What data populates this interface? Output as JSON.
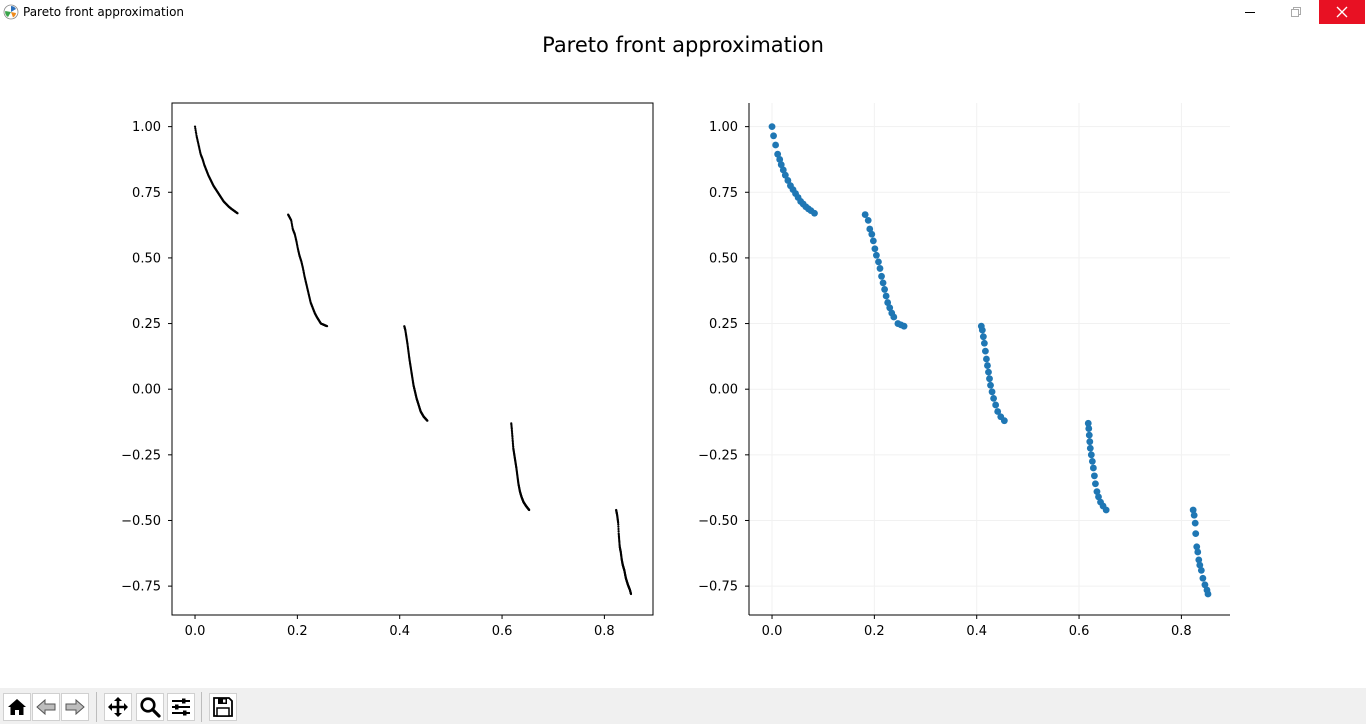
{
  "window": {
    "title": "Pareto front approximation",
    "controls": [
      "minimize",
      "maximize",
      "close"
    ]
  },
  "figure": {
    "suptitle": "Pareto front approximation"
  },
  "chart_data": [
    {
      "type": "scatter",
      "panel": "left",
      "style": "dense black small points, boxed axes",
      "marker_color": "#000000",
      "xlim": [
        -0.045,
        0.895
      ],
      "ylim": [
        -0.86,
        1.09
      ],
      "xticks": [
        0.0,
        0.2,
        0.4,
        0.6,
        0.8
      ],
      "xtick_labels": [
        "0.0",
        "0.2",
        "0.4",
        "0.6",
        "0.8"
      ],
      "yticks": [
        -0.75,
        -0.5,
        -0.25,
        0.0,
        0.25,
        0.5,
        0.75,
        1.0
      ],
      "ytick_labels": [
        "−0.75",
        "−0.50",
        "−0.25",
        "0.00",
        "0.25",
        "0.50",
        "0.75",
        "1.00"
      ],
      "grid": false,
      "segments": [
        [
          0.0,
          0.083
        ],
        [
          0.182,
          0.258
        ],
        [
          0.409,
          0.454
        ],
        [
          0.618,
          0.653
        ],
        [
          0.823,
          0.852
        ]
      ]
    },
    {
      "type": "scatter",
      "panel": "right",
      "style": "blue circular markers, left and bottom spines only, faint grid",
      "marker_color": "#1f77b4",
      "xlim": [
        -0.045,
        0.895
      ],
      "ylim": [
        -0.86,
        1.09
      ],
      "xticks": [
        0.0,
        0.2,
        0.4,
        0.6,
        0.8
      ],
      "xtick_labels": [
        "0.0",
        "0.2",
        "0.4",
        "0.6",
        "0.8"
      ],
      "yticks": [
        -0.75,
        -0.5,
        -0.25,
        0.0,
        0.25,
        0.5,
        0.75,
        1.0
      ],
      "ytick_labels": [
        "−0.75",
        "−0.50",
        "−0.25",
        "0.00",
        "0.25",
        "0.50",
        "0.75",
        "1.00"
      ],
      "grid": true,
      "x": [
        0.0,
        0.003,
        0.007,
        0.011,
        0.015,
        0.018,
        0.022,
        0.026,
        0.031,
        0.036,
        0.041,
        0.046,
        0.051,
        0.056,
        0.061,
        0.066,
        0.071,
        0.076,
        0.083,
        0.182,
        0.188,
        0.191,
        0.195,
        0.198,
        0.201,
        0.204,
        0.208,
        0.211,
        0.214,
        0.217,
        0.22,
        0.223,
        0.226,
        0.23,
        0.234,
        0.238,
        0.246,
        0.252,
        0.258,
        0.409,
        0.411,
        0.413,
        0.415,
        0.417,
        0.419,
        0.421,
        0.423,
        0.425,
        0.427,
        0.43,
        0.433,
        0.437,
        0.441,
        0.447,
        0.454,
        0.618,
        0.619,
        0.62,
        0.621,
        0.622,
        0.624,
        0.626,
        0.628,
        0.63,
        0.632,
        0.635,
        0.638,
        0.642,
        0.647,
        0.653,
        0.823,
        0.825,
        0.827,
        0.828,
        0.83,
        0.832,
        0.834,
        0.836,
        0.839,
        0.842,
        0.846,
        0.85,
        0.852
      ],
      "y": [
        1.0,
        0.965,
        0.93,
        0.895,
        0.875,
        0.855,
        0.835,
        0.815,
        0.795,
        0.775,
        0.76,
        0.745,
        0.73,
        0.715,
        0.705,
        0.695,
        0.687,
        0.68,
        0.67,
        0.665,
        0.643,
        0.61,
        0.59,
        0.565,
        0.535,
        0.51,
        0.485,
        0.46,
        0.43,
        0.405,
        0.38,
        0.355,
        0.33,
        0.31,
        0.29,
        0.275,
        0.25,
        0.245,
        0.24,
        0.24,
        0.225,
        0.2,
        0.175,
        0.145,
        0.115,
        0.09,
        0.065,
        0.04,
        0.015,
        -0.01,
        -0.035,
        -0.06,
        -0.085,
        -0.105,
        -0.12,
        -0.13,
        -0.15,
        -0.175,
        -0.2,
        -0.225,
        -0.25,
        -0.275,
        -0.3,
        -0.33,
        -0.36,
        -0.39,
        -0.41,
        -0.43,
        -0.445,
        -0.46,
        -0.46,
        -0.48,
        -0.51,
        -0.55,
        -0.6,
        -0.62,
        -0.65,
        -0.67,
        -0.69,
        -0.72,
        -0.745,
        -0.765,
        -0.78
      ]
    }
  ],
  "toolbar": {
    "buttons": [
      {
        "name": "home-icon"
      },
      {
        "name": "back-icon"
      },
      {
        "name": "forward-icon"
      },
      {
        "name": "pan-icon"
      },
      {
        "name": "zoom-icon"
      },
      {
        "name": "configure-subplots-icon"
      },
      {
        "name": "save-icon"
      }
    ]
  }
}
